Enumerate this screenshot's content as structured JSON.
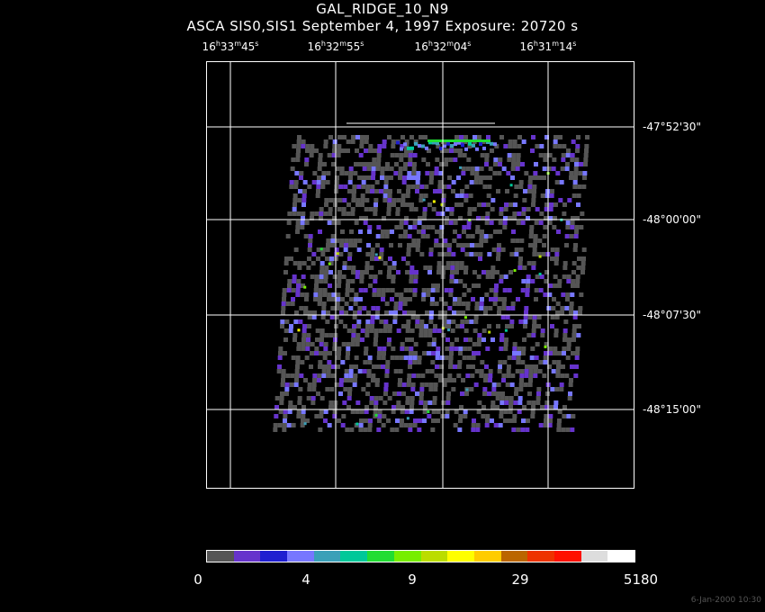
{
  "title": "GAL_RIDGE_10_N9",
  "subtitle": "ASCA SIS0,SIS1 September 4, 1997 Exposure: 20720 s",
  "ra_labels": [
    {
      "h": "16",
      "m": "33",
      "s": "45"
    },
    {
      "h": "16",
      "m": "32",
      "s": "55"
    },
    {
      "h": "16",
      "m": "32",
      "s": "04"
    },
    {
      "h": "16",
      "m": "31",
      "s": "14"
    }
  ],
  "dec_labels": [
    "-47°52'30\"",
    "-48°00'00\"",
    "-48°07'30\"",
    "-48°15'00\""
  ],
  "colorbar": {
    "labels": [
      "0",
      "4",
      "9",
      "29",
      "5180"
    ],
    "colors": [
      "#555555",
      "#6633cc",
      "#1f1fd0",
      "#7777ff",
      "#3aa0b8",
      "#00c899",
      "#22dd33",
      "#77ee00",
      "#bbdd00",
      "#ffff00",
      "#ffcc00",
      "#bb6600",
      "#ee3300",
      "#ff1100",
      "#dddddd",
      "#ffffff"
    ]
  },
  "timestamp": "6-Jan-2000 10:30",
  "units": {
    "h": "h",
    "m": "m",
    "s": "s"
  }
}
